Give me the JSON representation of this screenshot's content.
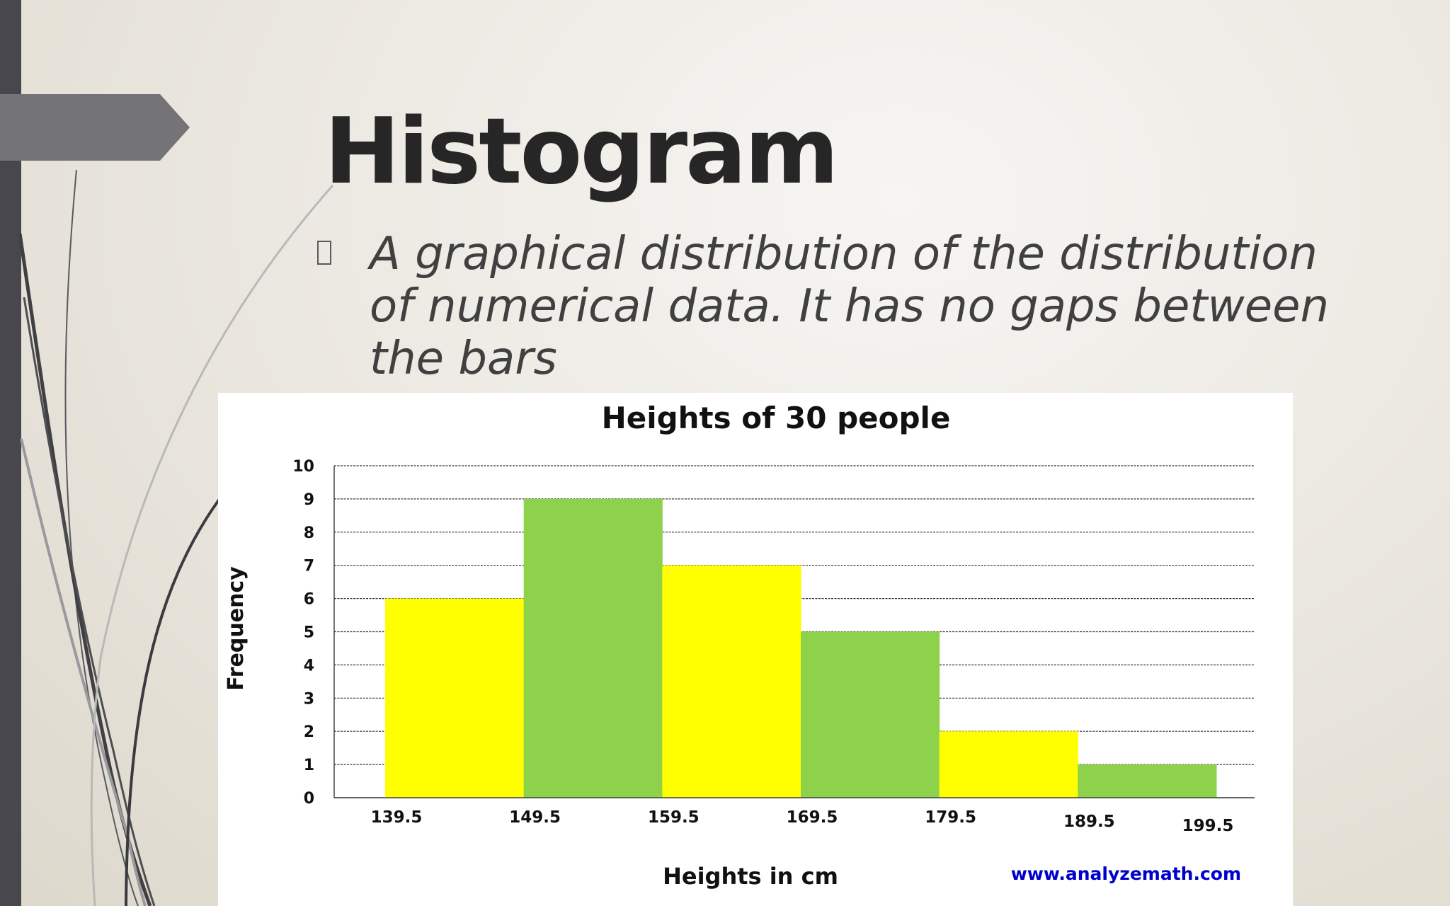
{
  "slide": {
    "title": "Histogram",
    "bullet": "A graphical distribution of the distribution of numerical data. It has no gaps between the bars"
  },
  "chart_data": {
    "type": "bar",
    "title": "Heights of 30 people",
    "xlabel": "Heights in cm",
    "ylabel": "Frequency",
    "bin_edges": [
      "139.5",
      "149.5",
      "159.5",
      "169.5",
      "179.5",
      "189.5",
      "199.5"
    ],
    "categories": [
      "139.5-149.5",
      "149.5-159.5",
      "159.5-169.5",
      "169.5-179.5",
      "179.5-189.5",
      "189.5-199.5"
    ],
    "values": [
      6,
      9,
      7,
      5,
      2,
      1
    ],
    "ylim": [
      0,
      10
    ],
    "yticks": [
      0,
      1,
      2,
      3,
      4,
      5,
      6,
      7,
      8,
      9,
      10
    ],
    "grid": true,
    "gaps_between_bars": false,
    "bar_colors": [
      "#ffff00",
      "#8ed14a",
      "#ffff00",
      "#8ed14a",
      "#ffff00",
      "#8ed14a"
    ],
    "source": "www.analyzemath.com",
    "source_color": "#0000cc"
  },
  "theme": {
    "title_color": "#262626",
    "bullet_color": "#404040",
    "left_bar_color": "#47474d",
    "tab_color": "#737378"
  }
}
